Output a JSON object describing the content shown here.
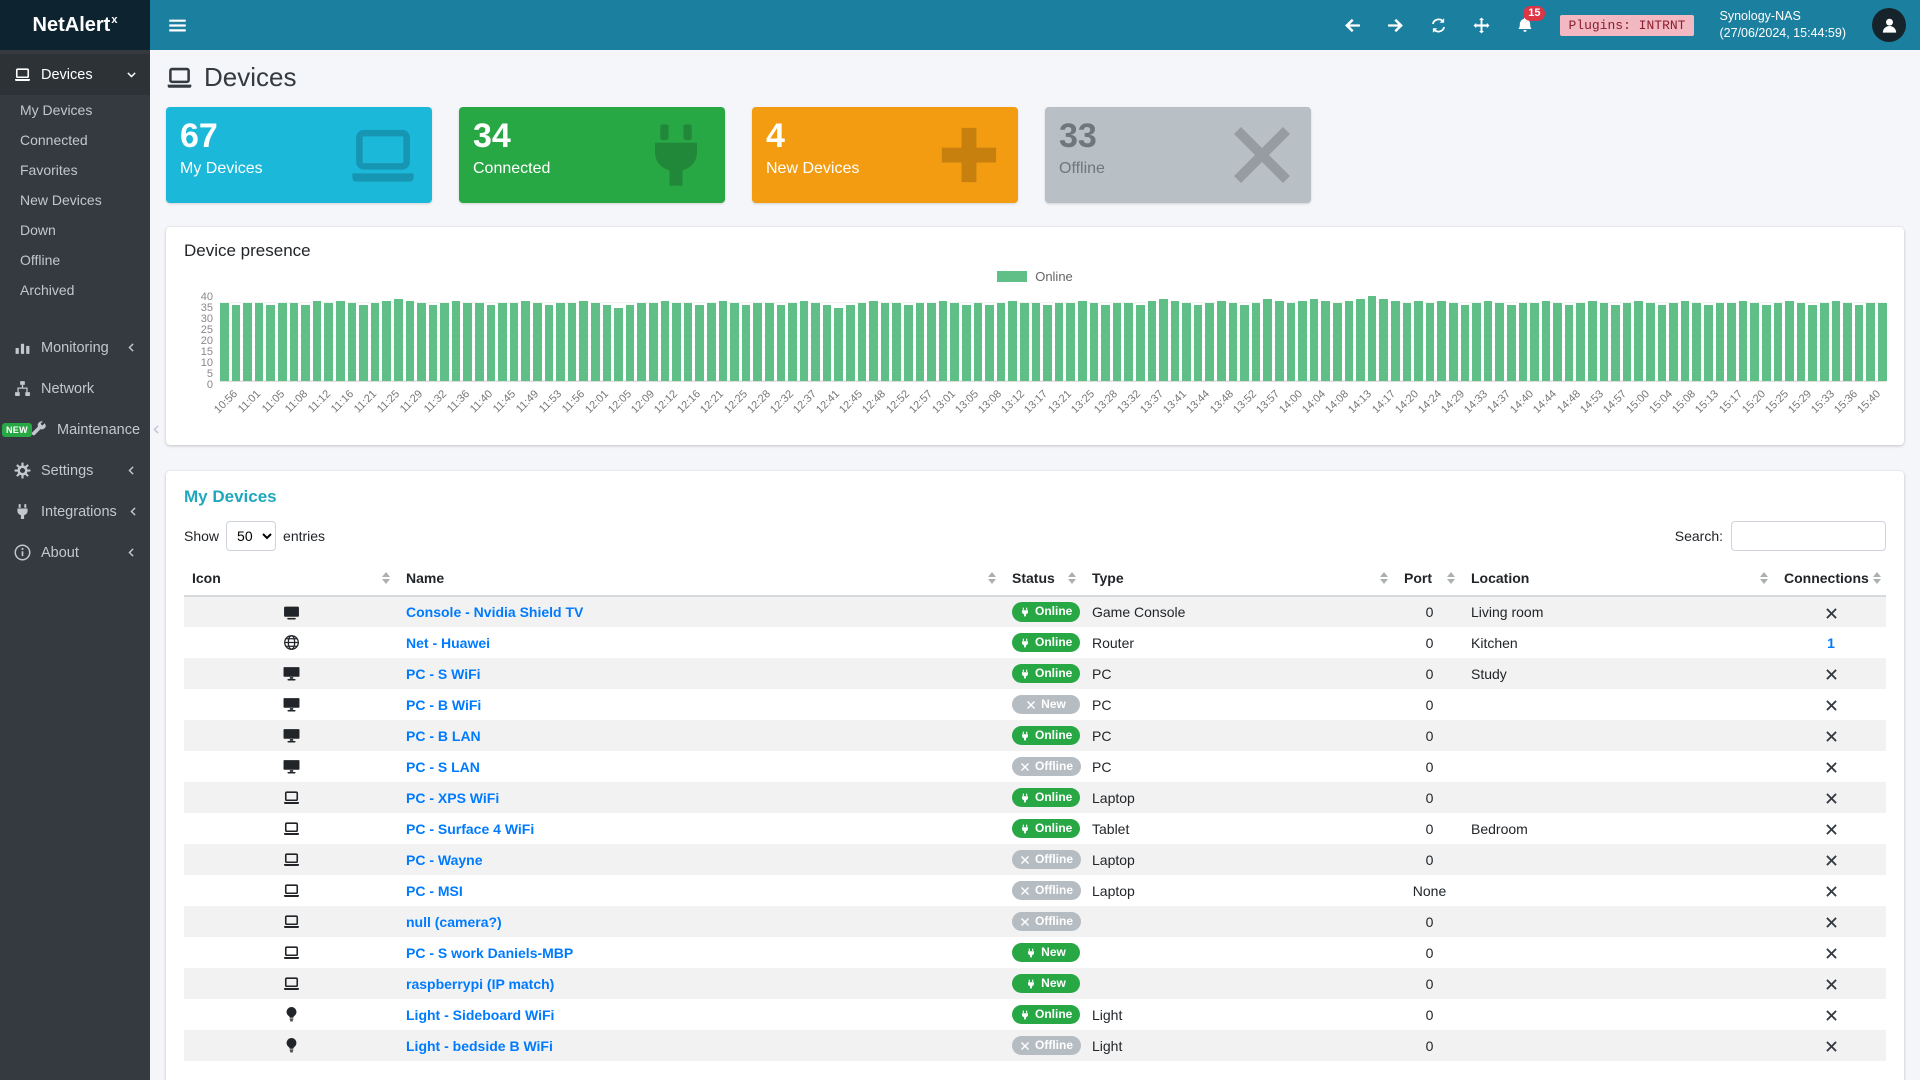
{
  "brand": {
    "name": "NetAlert",
    "sup": "x"
  },
  "topbar": {
    "notifications": "15",
    "plugins_badge": "Plugins: INTRNT",
    "device_name": "Synology-NAS",
    "device_time": "(27/06/2024, 15:44:59)"
  },
  "sidebar": {
    "devices": {
      "label": "Devices",
      "icon": "laptop-icon",
      "children": [
        {
          "label": "My Devices"
        },
        {
          "label": "Connected"
        },
        {
          "label": "Favorites"
        },
        {
          "label": "New Devices"
        },
        {
          "label": "Down"
        },
        {
          "label": "Offline"
        },
        {
          "label": "Archived"
        }
      ]
    },
    "items": [
      {
        "label": "Monitoring",
        "icon": "chart-icon",
        "chevron": true
      },
      {
        "label": "Network",
        "icon": "network-icon",
        "chevron": false
      },
      {
        "label": "Maintenance",
        "icon": "tools-icon",
        "chevron": true,
        "badge": "NEW"
      },
      {
        "label": "Settings",
        "icon": "gear-icon",
        "chevron": true
      },
      {
        "label": "Integrations",
        "icon": "plug-icon",
        "chevron": true
      },
      {
        "label": "About",
        "icon": "info-icon",
        "chevron": true
      }
    ]
  },
  "page": {
    "title": "Devices"
  },
  "stats": [
    {
      "value": "67",
      "label": "My Devices",
      "color": "#1bb8d9",
      "icon": "laptop-icon"
    },
    {
      "value": "34",
      "label": "Connected",
      "color": "#28a745",
      "icon": "plug-icon"
    },
    {
      "value": "4",
      "label": "New Devices",
      "color": "#f39c12",
      "icon": "plus-icon"
    },
    {
      "value": "33",
      "label": "Offline",
      "color": "#b8bfc5",
      "icon": "x-icon",
      "text_color": "#6e777e"
    }
  ],
  "chart_data": {
    "type": "bar",
    "title": "Device presence",
    "legend": [
      {
        "label": "Online",
        "color": "#5fbf87"
      }
    ],
    "ylim": [
      0,
      40
    ],
    "yticks": [
      0,
      5,
      10,
      15,
      20,
      25,
      30,
      35,
      40
    ],
    "bars_per_label": 2,
    "x_labels": [
      "10:56",
      "11:01",
      "11:05",
      "11:08",
      "11:12",
      "11:16",
      "11:21",
      "11:25",
      "11:29",
      "11:32",
      "11:36",
      "11:40",
      "11:45",
      "11:49",
      "11:53",
      "11:56",
      "12:01",
      "12:05",
      "12:09",
      "12:12",
      "12:16",
      "12:21",
      "12:25",
      "12:28",
      "12:32",
      "12:37",
      "12:41",
      "12:45",
      "12:48",
      "12:52",
      "12:57",
      "13:01",
      "13:05",
      "13:08",
      "13:12",
      "13:17",
      "13:21",
      "13:25",
      "13:28",
      "13:32",
      "13:37",
      "13:41",
      "13:44",
      "13:48",
      "13:52",
      "13:57",
      "14:00",
      "14:04",
      "14:08",
      "14:13",
      "14:17",
      "14:20",
      "14:24",
      "14:29",
      "14:33",
      "14:37",
      "14:40",
      "14:44",
      "14:48",
      "14:53",
      "14:57",
      "15:00",
      "15:04",
      "15:08",
      "15:13",
      "15:17",
      "15:20",
      "15:25",
      "15:29",
      "15:33",
      "15:36",
      "15:40"
    ],
    "values": [
      35,
      34,
      35,
      35,
      34,
      35,
      35,
      34,
      36,
      35,
      36,
      35,
      34,
      35,
      36,
      37,
      36,
      35,
      34,
      35,
      36,
      35,
      35,
      34,
      35,
      35,
      36,
      35,
      34,
      35,
      35,
      36,
      35,
      34,
      33,
      34,
      35,
      35,
      36,
      35,
      35,
      34,
      35,
      36,
      35,
      34,
      35,
      35,
      34,
      35,
      36,
      35,
      34,
      33,
      34,
      35,
      36,
      35,
      35,
      34,
      35,
      35,
      36,
      35,
      34,
      35,
      34,
      35,
      36,
      35,
      35,
      34,
      35,
      35,
      36,
      35,
      34,
      35,
      35,
      34,
      36,
      37,
      36,
      35,
      34,
      35,
      36,
      35,
      34,
      35,
      37,
      36,
      35,
      36,
      37,
      36,
      35,
      36,
      37,
      38,
      37,
      36,
      35,
      36,
      35,
      36,
      35,
      34,
      35,
      36,
      35,
      34,
      35,
      35,
      36,
      35,
      34,
      35,
      36,
      35,
      34,
      35,
      36,
      35,
      34,
      35,
      36,
      35,
      34,
      35,
      35,
      36,
      35,
      34,
      35,
      36,
      35,
      34,
      35,
      36,
      35,
      34,
      35,
      35
    ]
  },
  "devices_table": {
    "title": "My Devices",
    "show_label": "Show",
    "entries_options": [
      "50"
    ],
    "entries_value": "50",
    "entries_suffix": "entries",
    "search_label": "Search:",
    "columns": [
      "Icon",
      "Name",
      "Status",
      "Type",
      "Port",
      "Location",
      "Connections"
    ],
    "rows": [
      {
        "icon": "tv-icon",
        "name": "Console - Nvidia Shield TV",
        "status": "Online",
        "status_variant": "green",
        "status_icon": "plug",
        "type": "Game Console",
        "port": "0",
        "location": "Living room",
        "connections": "x"
      },
      {
        "icon": "globe-icon",
        "name": "Net - Huawei",
        "status": "Online",
        "status_variant": "green",
        "status_icon": "plug",
        "type": "Router",
        "port": "0",
        "location": "Kitchen",
        "connections": "1"
      },
      {
        "icon": "desktop-icon",
        "name": "PC - S WiFi",
        "status": "Online",
        "status_variant": "green",
        "status_icon": "plug",
        "type": "PC",
        "port": "0",
        "location": "Study",
        "connections": "x"
      },
      {
        "icon": "desktop-icon",
        "name": "PC - B WiFi",
        "status": "New",
        "status_variant": "gray",
        "status_icon": "x",
        "type": "PC",
        "port": "0",
        "location": "",
        "connections": "x"
      },
      {
        "icon": "desktop-icon",
        "name": "PC - B LAN",
        "status": "Online",
        "status_variant": "green",
        "status_icon": "plug",
        "type": "PC",
        "port": "0",
        "location": "",
        "connections": "x"
      },
      {
        "icon": "desktop-icon",
        "name": "PC - S LAN",
        "status": "Offline",
        "status_variant": "gray",
        "status_icon": "x",
        "type": "PC",
        "port": "0",
        "location": "",
        "connections": "x"
      },
      {
        "icon": "laptop-icon",
        "name": "PC - XPS WiFi",
        "status": "Online",
        "status_variant": "green",
        "status_icon": "plug",
        "type": "Laptop",
        "port": "0",
        "location": "",
        "connections": "x"
      },
      {
        "icon": "laptop-icon",
        "name": "PC - Surface 4 WiFi",
        "status": "Online",
        "status_variant": "green",
        "status_icon": "plug",
        "type": "Tablet",
        "port": "0",
        "location": "Bedroom",
        "connections": "x"
      },
      {
        "icon": "laptop-icon",
        "name": "PC - Wayne",
        "status": "Offline",
        "status_variant": "gray",
        "status_icon": "x",
        "type": "Laptop",
        "port": "0",
        "location": "",
        "connections": "x"
      },
      {
        "icon": "laptop-icon",
        "name": "PC - MSI",
        "status": "Offline",
        "status_variant": "gray",
        "status_icon": "x",
        "type": "Laptop",
        "port": "None",
        "location": "",
        "connections": "x"
      },
      {
        "icon": "laptop-icon",
        "name": "null (camera?)",
        "status": "Offline",
        "status_variant": "gray",
        "status_icon": "x",
        "type": "",
        "port": "0",
        "location": "",
        "connections": "x"
      },
      {
        "icon": "laptop-icon",
        "name": "PC - S work Daniels-MBP",
        "status": "New",
        "status_variant": "green",
        "status_icon": "plug",
        "type": "",
        "port": "0",
        "location": "",
        "connections": "x"
      },
      {
        "icon": "laptop-icon",
        "name": "raspberrypi (IP match)",
        "status": "New",
        "status_variant": "green",
        "status_icon": "plug",
        "type": "",
        "port": "0",
        "location": "",
        "connections": "x"
      },
      {
        "icon": "lightbulb-icon",
        "name": "Light - Sideboard WiFi",
        "status": "Online",
        "status_variant": "green",
        "status_icon": "plug",
        "type": "Light",
        "port": "0",
        "location": "",
        "connections": "x"
      },
      {
        "icon": "lightbulb-icon",
        "name": "Light - bedside B WiFi",
        "status": "Offline",
        "status_variant": "gray",
        "status_icon": "x",
        "type": "Light",
        "port": "0",
        "location": "",
        "connections": "x"
      }
    ]
  },
  "colors": {
    "topbar": "#1b7f9f",
    "brand_bg": "#0d2430",
    "sidebar": "#343a40",
    "content_bg": "#f4f6f9",
    "link": "#007bff",
    "accent_teal": "#1fa8bd",
    "online": "#28a745",
    "offline": "#b5bcc2",
    "bar": "#5fbf87",
    "notification": "#dc3545",
    "plugins_bg": "#f3b9c3",
    "plugins_text": "#8a1f2b"
  }
}
